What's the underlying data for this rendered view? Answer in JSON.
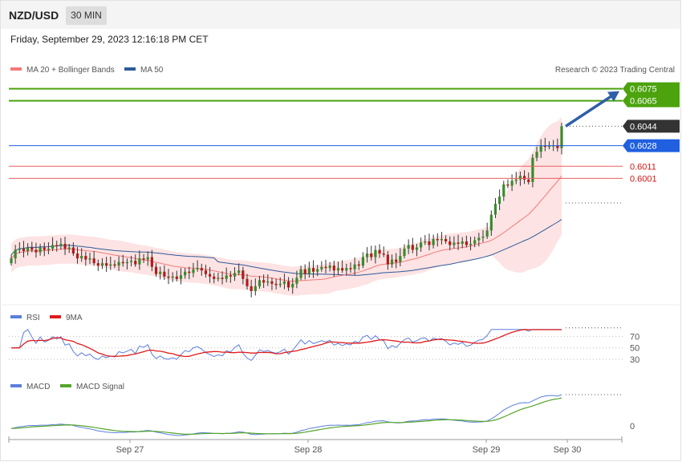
{
  "header": {
    "pair": "NZD/USD",
    "timeframe": "30 MIN",
    "datetime": "Friday, September 29, 2023 12:16:18 PM CET"
  },
  "legend": {
    "ma20_label": "MA 20 + Bollinger Bands",
    "ma50_label": "MA 50",
    "credit": "Research © 2023 Trading Central",
    "rsi_label": "RSI",
    "rsi_ma_label": "9MA",
    "macd_label": "MACD",
    "macd_signal_label": "MACD Signal"
  },
  "colors": {
    "up": "#3a8a2a",
    "down": "#b01c1c",
    "band_fill": "#fde3e3",
    "ma20": "#f27a7a",
    "ma50": "#2e5b9a",
    "rsi": "#5b7fdb",
    "rsi_ma": "#e01b1b",
    "macd": "#5b7fdb",
    "macd_signal": "#55a52a",
    "resistance": "#4ca30e",
    "support": "#e86060",
    "pivot": "#1f5fe0",
    "current_price": "#333333",
    "arrow": "#2f5fa8"
  },
  "chart_data": {
    "type": "candlestick",
    "price_ylim": [
      0.59,
      0.6082
    ],
    "x_ticks": [
      "Sep 27",
      "Sep 28",
      "Sep 29",
      "Sep 30"
    ],
    "levels": [
      {
        "label": "0.6075",
        "value": 0.6075,
        "kind": "resistance"
      },
      {
        "label": "0.6065",
        "value": 0.6065,
        "kind": "resistance"
      },
      {
        "label": "0.6044",
        "value": 0.6044,
        "kind": "last"
      },
      {
        "label": "0.6028",
        "value": 0.6028,
        "kind": "pivot"
      },
      {
        "label": "0.6011",
        "value": 0.6011,
        "kind": "support"
      },
      {
        "label": "0.6001",
        "value": 0.6001,
        "kind": "support"
      }
    ],
    "closes": [
      0.5935,
      0.5942,
      0.5943,
      0.5941,
      0.5944,
      0.5942,
      0.594,
      0.5944,
      0.5942,
      0.5943,
      0.5946,
      0.5945,
      0.5947,
      0.5943,
      0.5944,
      0.5939,
      0.5935,
      0.5937,
      0.5934,
      0.5935,
      0.5931,
      0.5929,
      0.5931,
      0.5929,
      0.593,
      0.5929,
      0.5932,
      0.5931,
      0.5932,
      0.5933,
      0.593,
      0.5935,
      0.5934,
      0.5936,
      0.5928,
      0.5922,
      0.5924,
      0.592,
      0.5919,
      0.592,
      0.5918,
      0.5921,
      0.5924,
      0.5923,
      0.5926,
      0.5927,
      0.5925,
      0.5922,
      0.592,
      0.5918,
      0.5919,
      0.5918,
      0.5921,
      0.592,
      0.5923,
      0.5925,
      0.5918,
      0.5912,
      0.5908,
      0.5912,
      0.5917,
      0.5915,
      0.5916,
      0.5914,
      0.5913,
      0.5914,
      0.5916,
      0.5911,
      0.5914,
      0.5919,
      0.5926,
      0.5922,
      0.5927,
      0.5924,
      0.5926,
      0.5928,
      0.5927,
      0.5929,
      0.5925,
      0.5927,
      0.5925,
      0.5927,
      0.5926,
      0.593,
      0.5929,
      0.5936,
      0.5939,
      0.5936,
      0.5942,
      0.5939,
      0.5938,
      0.593,
      0.5934,
      0.5932,
      0.5937,
      0.5943,
      0.5946,
      0.5942,
      0.5944,
      0.5948,
      0.5949,
      0.5946,
      0.5951,
      0.595,
      0.5951,
      0.5949,
      0.5946,
      0.5948,
      0.5947,
      0.5949,
      0.5946,
      0.5947,
      0.595,
      0.5952,
      0.5953,
      0.5958,
      0.5971,
      0.598,
      0.5986,
      0.5996,
      0.5995,
      0.5999,
      0.6,
      0.6003,
      0.6,
      0.5998,
      0.6018,
      0.6023,
      0.6028,
      0.6027,
      0.6028,
      0.6028,
      0.6026,
      0.6044
    ],
    "rsi_ticks": [
      70,
      50,
      30
    ],
    "macd_ticks": [
      0
    ]
  }
}
